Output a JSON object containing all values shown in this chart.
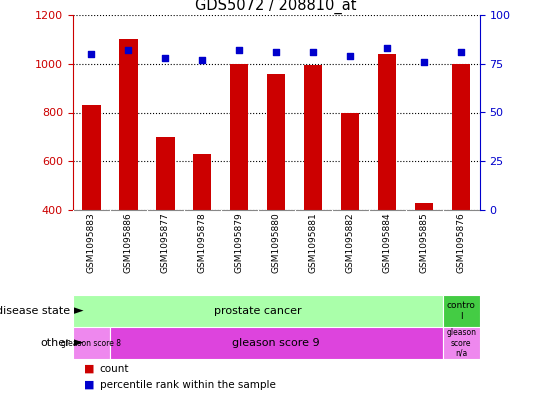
{
  "title": "GDS5072 / 208810_at",
  "samples": [
    "GSM1095883",
    "GSM1095886",
    "GSM1095877",
    "GSM1095878",
    "GSM1095879",
    "GSM1095880",
    "GSM1095881",
    "GSM1095882",
    "GSM1095884",
    "GSM1095885",
    "GSM1095876"
  ],
  "counts": [
    830,
    1100,
    700,
    630,
    1000,
    960,
    995,
    800,
    1040,
    430,
    1000
  ],
  "percentiles": [
    80,
    82,
    78,
    77,
    82,
    81,
    81,
    79,
    83,
    76,
    81
  ],
  "ylim_left": [
    400,
    1200
  ],
  "ylim_right": [
    0,
    100
  ],
  "yticks_left": [
    400,
    600,
    800,
    1000,
    1200
  ],
  "yticks_right": [
    0,
    25,
    50,
    75,
    100
  ],
  "bar_color": "#cc0000",
  "dot_color": "#0000cc",
  "tick_bg_color": "#cccccc",
  "prostate_color": "#aaffaa",
  "control_color": "#44cc44",
  "gleason8_color": "#ee88ee",
  "gleason9_color": "#dd44dd",
  "gleasonNA_color": "#ee88ee"
}
